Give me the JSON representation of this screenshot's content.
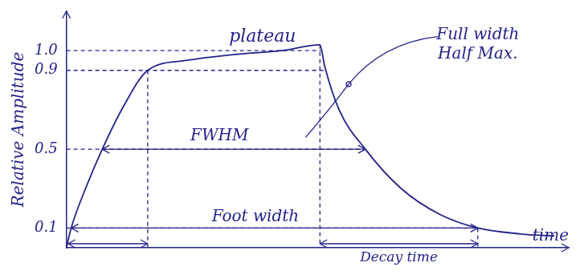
{
  "chart_data": {
    "type": "line",
    "y_label": "Relative Amplitude",
    "x_label": "time",
    "x": [
      0,
      0.1,
      0.4,
      0.75,
      1.2,
      1.7,
      2.5,
      3.5,
      4.5,
      5.3,
      5.4,
      5.7,
      6.25,
      7,
      7.8,
      8.6,
      9.5,
      10.2
    ],
    "values": [
      0,
      0.1,
      0.3,
      0.5,
      0.72,
      0.9,
      0.95,
      0.98,
      1.0,
      1.03,
      0.92,
      0.7,
      0.5,
      0.3,
      0.17,
      0.1,
      0.07,
      0.06
    ],
    "color": "#23238a",
    "xlim": [
      0,
      10.5
    ],
    "ylim": [
      0,
      1.2
    ],
    "yticks": [
      0.1,
      0.5,
      0.9,
      {
        "value": 1,
        "label": "1.0"
      }
    ],
    "tick_labels": "y",
    "grid": false,
    "annotations": [
      "plateau",
      "Full width Half Max.",
      "FWHM",
      "Foot width",
      "Decay time"
    ]
  }
}
